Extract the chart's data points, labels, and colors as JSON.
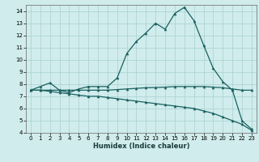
{
  "xlabel": "Humidex (Indice chaleur)",
  "xlim": [
    -0.5,
    23.5
  ],
  "ylim": [
    4,
    14.5
  ],
  "xticks": [
    0,
    1,
    2,
    3,
    4,
    5,
    6,
    7,
    8,
    9,
    10,
    11,
    12,
    13,
    14,
    15,
    16,
    17,
    18,
    19,
    20,
    21,
    22,
    23
  ],
  "yticks": [
    4,
    5,
    6,
    7,
    8,
    9,
    10,
    11,
    12,
    13,
    14
  ],
  "bg_color": "#d0ecec",
  "line_color": "#1a6060",
  "grid_color": "#a8d0d0",
  "line1_x": [
    0,
    1,
    2,
    3,
    4,
    5,
    6,
    7,
    8,
    9,
    10,
    11,
    12,
    13,
    14,
    15,
    16,
    17,
    18,
    19,
    20,
    21,
    22,
    23
  ],
  "line1_y": [
    7.5,
    7.8,
    8.1,
    7.5,
    7.3,
    7.6,
    7.8,
    7.8,
    7.8,
    8.5,
    10.5,
    11.5,
    12.2,
    13.0,
    12.5,
    13.8,
    14.3,
    13.2,
    11.2,
    9.3,
    8.2,
    7.5,
    5.0,
    4.3
  ],
  "line2_x": [
    0,
    1,
    2,
    3,
    4,
    5,
    6,
    7,
    8,
    9,
    10,
    11,
    12,
    13,
    14,
    15,
    16,
    17,
    18,
    19,
    20,
    21,
    22,
    23
  ],
  "line2_y": [
    7.5,
    7.5,
    7.5,
    7.5,
    7.5,
    7.5,
    7.5,
    7.5,
    7.5,
    7.55,
    7.6,
    7.65,
    7.7,
    7.72,
    7.75,
    7.8,
    7.8,
    7.8,
    7.8,
    7.75,
    7.7,
    7.6,
    7.5,
    7.5
  ],
  "line3_x": [
    0,
    1,
    2,
    3,
    4,
    5,
    6,
    7,
    8,
    9,
    10,
    11,
    12,
    13,
    14,
    15,
    16,
    17,
    18,
    19,
    20,
    21,
    22,
    23
  ],
  "line3_y": [
    7.5,
    7.5,
    7.4,
    7.3,
    7.2,
    7.1,
    7.0,
    7.0,
    6.9,
    6.8,
    6.7,
    6.6,
    6.5,
    6.4,
    6.3,
    6.2,
    6.1,
    6.0,
    5.8,
    5.6,
    5.3,
    5.0,
    4.7,
    4.2
  ],
  "xlabel_fontsize": 6,
  "tick_fontsize": 5,
  "lw": 0.9,
  "marker_size": 2.2
}
